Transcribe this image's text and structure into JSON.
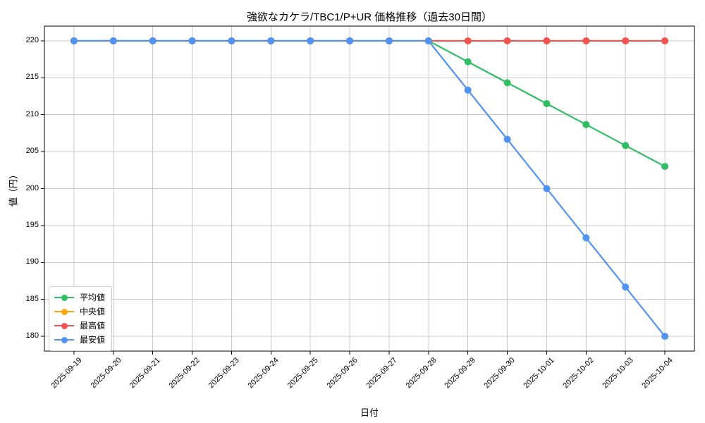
{
  "chart_data": {
    "type": "line",
    "title": "強欲なカケラ/TBC1/P+UR 価格推移（過去30日間）",
    "xlabel": "日付",
    "ylabel": "値（円）",
    "categories": [
      "2025-09-19",
      "2025-09-20",
      "2025-09-21",
      "2025-09-22",
      "2025-09-23",
      "2025-09-24",
      "2025-09-25",
      "2025-09-26",
      "2025-09-27",
      "2025-09-28",
      "2025-09-29",
      "2025-09-30",
      "2025-10-01",
      "2025-10-02",
      "2025-10-03",
      "2025-10-04"
    ],
    "yticks": [
      180,
      185,
      190,
      195,
      200,
      205,
      210,
      215,
      220
    ],
    "ylim": [
      178,
      222
    ],
    "grid": true,
    "legend_position": "lower left",
    "series": [
      {
        "key": "average",
        "name": "平均値",
        "color": "#2fbe62",
        "values": [
          220,
          220,
          220,
          220,
          220,
          220,
          220,
          220,
          220,
          220,
          217.17,
          214.33,
          211.5,
          208.67,
          205.83,
          203
        ]
      },
      {
        "key": "median",
        "name": "中央値",
        "color": "#ffa60a",
        "values": [
          220,
          220,
          220,
          220,
          220,
          220,
          220,
          220,
          220,
          220,
          220,
          220,
          220,
          220,
          220,
          220
        ]
      },
      {
        "key": "max",
        "name": "最高値",
        "color": "#f25454",
        "values": [
          220,
          220,
          220,
          220,
          220,
          220,
          220,
          220,
          220,
          220,
          220,
          220,
          220,
          220,
          220,
          220
        ]
      },
      {
        "key": "min",
        "name": "最安値",
        "color": "#5093f5",
        "values": [
          220,
          220,
          220,
          220,
          220,
          220,
          220,
          220,
          220,
          220,
          213.33,
          206.67,
          200,
          193.33,
          186.67,
          180
        ]
      }
    ]
  },
  "colors": {
    "grid": "#c8c8c8",
    "spine": "#000000",
    "tick": "#000000",
    "text": "#000000",
    "legend_border": "#cccccc",
    "background": "#ffffff"
  }
}
